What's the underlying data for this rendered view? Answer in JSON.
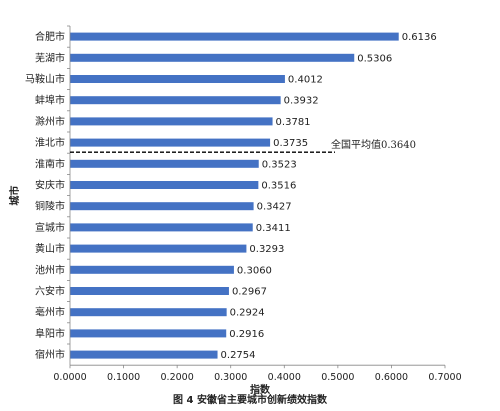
{
  "caption": "图 4  安徽省主要城市创新绩效指数",
  "chart_data": {
    "type": "bar",
    "orientation": "horizontal",
    "categories": [
      "合肥市",
      "芜湖市",
      "马鞍山市",
      "蚌埠市",
      "滁州市",
      "淮北市",
      "淮南市",
      "安庆市",
      "铜陵市",
      "宣城市",
      "黄山市",
      "池州市",
      "六安市",
      "亳州市",
      "阜阳市",
      "宿州市"
    ],
    "values": [
      0.6136,
      0.5306,
      0.4012,
      0.3932,
      0.3781,
      0.3735,
      0.3523,
      0.3516,
      0.3427,
      0.3411,
      0.3293,
      0.306,
      0.2967,
      0.2924,
      0.2916,
      0.2754
    ],
    "value_labels": [
      "0.6136",
      "0.5306",
      "0.4012",
      "0.3932",
      "0.3781",
      "0.3735",
      "0.3523",
      "0.3516",
      "0.3427",
      "0.3411",
      "0.3293",
      "0.3060",
      "0.2967",
      "0.2924",
      "0.2916",
      "0.2754"
    ],
    "xlabel": "指数",
    "ylabel": "城市",
    "xlim": [
      0,
      0.7
    ],
    "xticks": [
      0,
      0.1,
      0.2,
      0.3,
      0.4,
      0.5,
      0.6,
      0.7
    ],
    "xtick_labels": [
      "0.0000",
      "0.1000",
      "0.2000",
      "0.3000",
      "0.4000",
      "0.5000",
      "0.6000",
      "0.7000"
    ],
    "reference_line": {
      "value": 0.364,
      "label": "全国平均值0.3640",
      "style": "dashed"
    },
    "grid": false,
    "legend": "none",
    "bar_color": "#4472c4"
  }
}
